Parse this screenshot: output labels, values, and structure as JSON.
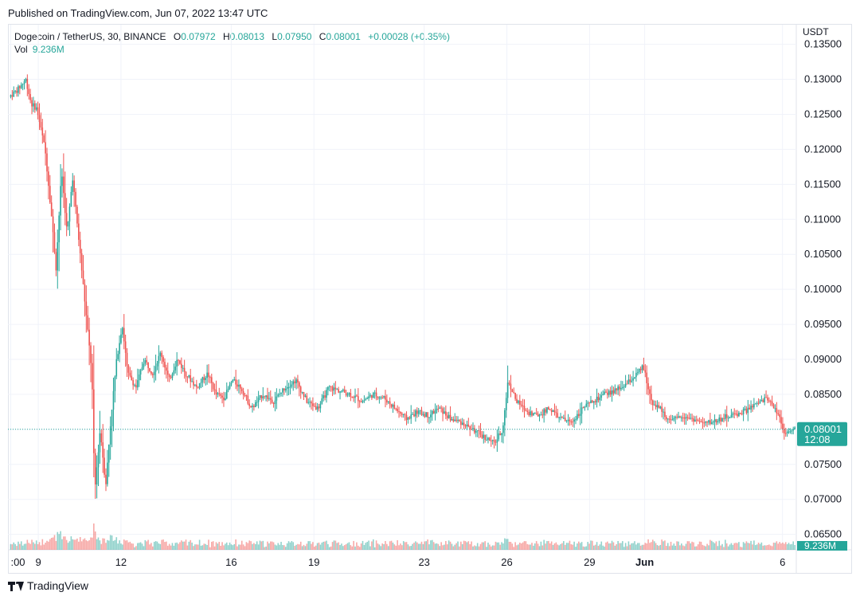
{
  "header": {
    "published": "Published on TradingView.com, Jun 07, 2022 13:47 UTC"
  },
  "legend": {
    "symbol": "Dogecoin / TetherUS, 30, BINANCE",
    "o_label": "O",
    "o_value": "0.07972",
    "h_label": "H",
    "h_value": "0.08013",
    "l_label": "L",
    "l_value": "0.07950",
    "c_label": "C",
    "c_value": "0.08001",
    "change": "+0.00028 (+0.35%)",
    "vol_label": "Vol",
    "vol_value": "9.236M"
  },
  "price_axis": {
    "unit": "USDT"
  },
  "last_price": {
    "value": "0.08001",
    "countdown": "12:08"
  },
  "volume_tag": "9.236M",
  "footer": {
    "brand": "TradingView"
  },
  "colors": {
    "up": "#26a69a",
    "down": "#ef5350",
    "grid": "#f0f3fa",
    "last_line": "#26a69a"
  },
  "chart_data": {
    "type": "candlestick",
    "title": "Dogecoin / TetherUS, 30, BINANCE",
    "ylabel": "USDT",
    "ylim": [
      0.0628,
      0.1378
    ],
    "y_ticks": [
      "0.13500",
      "0.13000",
      "0.12500",
      "0.12000",
      "0.11500",
      "0.11000",
      "0.10500",
      "0.10000",
      "0.09500",
      "0.09000",
      "0.08500",
      "0.08000",
      "0.07500",
      "0.07000",
      "0.06500"
    ],
    "x_ticks": [
      {
        "label": ":00",
        "x": 0.0
      },
      {
        "label": "9",
        "x": 1.0
      },
      {
        "label": "12",
        "x": 4.0
      },
      {
        "label": "16",
        "x": 8.0
      },
      {
        "label": "19",
        "x": 11.0
      },
      {
        "label": "23",
        "x": 15.0
      },
      {
        "label": "26",
        "x": 18.0
      },
      {
        "label": "29",
        "x": 21.0
      },
      {
        "label": "Jun",
        "x": 23.0
      },
      {
        "label": "6",
        "x": 28.0
      }
    ],
    "xlim": [
      -0.1,
      28.5
    ],
    "price_path": [
      [
        0.0,
        0.1275
      ],
      [
        0.3,
        0.1285
      ],
      [
        0.6,
        0.13
      ],
      [
        0.8,
        0.1265
      ],
      [
        1.0,
        0.1258
      ],
      [
        1.3,
        0.12
      ],
      [
        1.5,
        0.112
      ],
      [
        1.7,
        0.103
      ],
      [
        1.9,
        0.117
      ],
      [
        2.1,
        0.108
      ],
      [
        2.3,
        0.116
      ],
      [
        2.6,
        0.104
      ],
      [
        2.8,
        0.096
      ],
      [
        3.0,
        0.088
      ],
      [
        3.1,
        0.071
      ],
      [
        3.3,
        0.08
      ],
      [
        3.5,
        0.072
      ],
      [
        3.7,
        0.082
      ],
      [
        3.9,
        0.09
      ],
      [
        4.1,
        0.095
      ],
      [
        4.3,
        0.088
      ],
      [
        4.6,
        0.086
      ],
      [
        4.9,
        0.09
      ],
      [
        5.2,
        0.088
      ],
      [
        5.5,
        0.091
      ],
      [
        5.8,
        0.087
      ],
      [
        6.1,
        0.09
      ],
      [
        6.4,
        0.088
      ],
      [
        6.8,
        0.086
      ],
      [
        7.2,
        0.088
      ],
      [
        7.5,
        0.085
      ],
      [
        7.8,
        0.0845
      ],
      [
        8.1,
        0.087
      ],
      [
        8.4,
        0.086
      ],
      [
        8.8,
        0.083
      ],
      [
        9.2,
        0.085
      ],
      [
        9.6,
        0.084
      ],
      [
        10.0,
        0.086
      ],
      [
        10.4,
        0.087
      ],
      [
        10.8,
        0.084
      ],
      [
        11.2,
        0.083
      ],
      [
        11.6,
        0.086
      ],
      [
        12.0,
        0.0855
      ],
      [
        12.4,
        0.085
      ],
      [
        12.8,
        0.084
      ],
      [
        13.2,
        0.085
      ],
      [
        13.6,
        0.0845
      ],
      [
        14.0,
        0.083
      ],
      [
        14.4,
        0.0815
      ],
      [
        14.8,
        0.0825
      ],
      [
        15.2,
        0.082
      ],
      [
        15.6,
        0.083
      ],
      [
        16.0,
        0.0815
      ],
      [
        16.4,
        0.081
      ],
      [
        16.8,
        0.08
      ],
      [
        17.2,
        0.079
      ],
      [
        17.6,
        0.078
      ],
      [
        17.9,
        0.08
      ],
      [
        18.1,
        0.087
      ],
      [
        18.4,
        0.084
      ],
      [
        18.8,
        0.0825
      ],
      [
        19.2,
        0.082
      ],
      [
        19.6,
        0.083
      ],
      [
        20.0,
        0.0815
      ],
      [
        20.4,
        0.081
      ],
      [
        20.8,
        0.083
      ],
      [
        21.2,
        0.084
      ],
      [
        21.6,
        0.085
      ],
      [
        22.0,
        0.0855
      ],
      [
        22.4,
        0.0865
      ],
      [
        22.8,
        0.088
      ],
      [
        23.0,
        0.089
      ],
      [
        23.3,
        0.084
      ],
      [
        23.6,
        0.083
      ],
      [
        24.0,
        0.081
      ],
      [
        24.4,
        0.082
      ],
      [
        24.8,
        0.0815
      ],
      [
        25.2,
        0.0808
      ],
      [
        25.6,
        0.0812
      ],
      [
        26.0,
        0.0818
      ],
      [
        26.4,
        0.0822
      ],
      [
        26.8,
        0.0828
      ],
      [
        27.2,
        0.0838
      ],
      [
        27.5,
        0.0845
      ],
      [
        27.7,
        0.0835
      ],
      [
        27.9,
        0.0822
      ],
      [
        28.1,
        0.0798
      ],
      [
        28.3,
        0.0795
      ],
      [
        28.5,
        0.08
      ]
    ],
    "last_price": 0.08001
  }
}
